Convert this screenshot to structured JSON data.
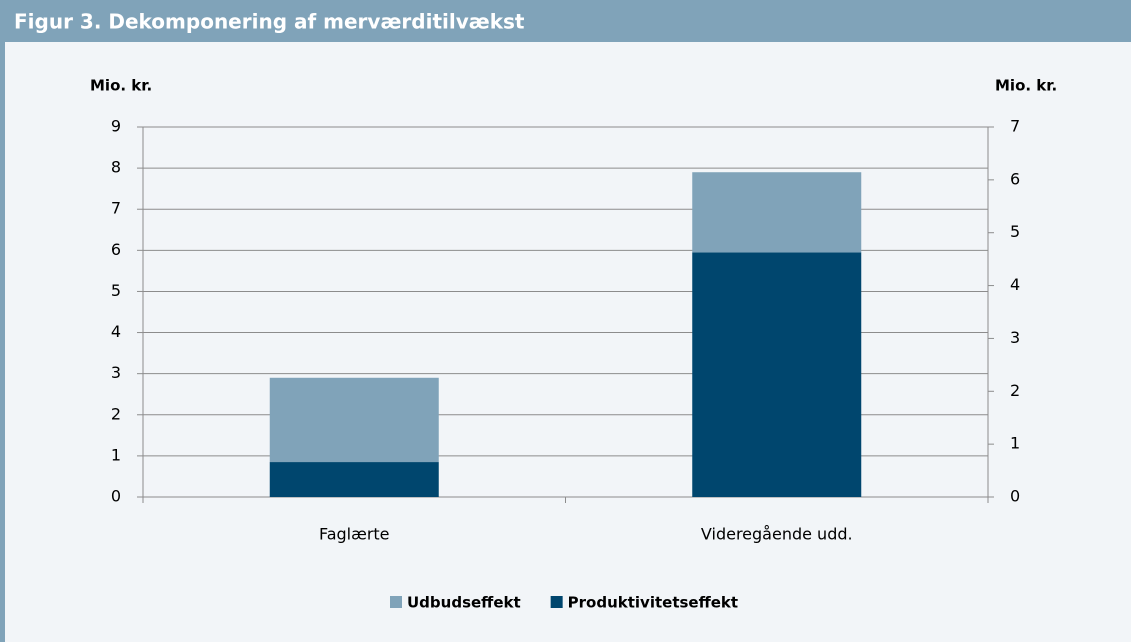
{
  "chart_data": {
    "type": "stacked_bar",
    "title": "Figur 3. Dekomponering af merværditilvækst",
    "ylabel": "Mio. kr.",
    "y2label": "Mio. kr.",
    "categories": [
      "Faglærte",
      "Videregående udd."
    ],
    "series": [
      {
        "name": "Produktivitetseffekt",
        "color": "#00466e",
        "values": [
          0.85,
          5.95
        ]
      },
      {
        "name": "Udbudseffekt",
        "color": "#80a3b9",
        "values": [
          2.05,
          1.95
        ]
      }
    ],
    "ylim": [
      0,
      9
    ],
    "yticks": [
      0,
      1,
      2,
      3,
      4,
      5,
      6,
      7,
      8,
      9
    ],
    "y2lim": [
      0,
      7
    ],
    "y2ticks": [
      0,
      1,
      2,
      3,
      4,
      5,
      6,
      7
    ],
    "grid": true
  }
}
